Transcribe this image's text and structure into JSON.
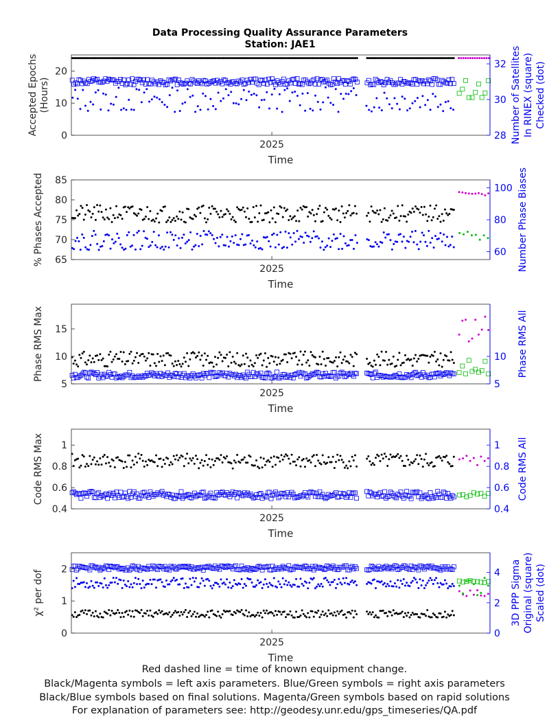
{
  "title": "Data Processing Quality Assurance Parameters",
  "subtitle": "Station: JAE1",
  "footer": [
    "Red dashed line = time of known equipment change.",
    "Black/Magenta symbols = left axis parameters. Blue/Green symbols = right axis parameters",
    "Black/Blue symbols based on final solutions.  Magenta/Green symbols based on rapid solutions",
    "For explanation of parameters see: http://geodesy.unr.edu/gps_timeseries/QA.pdf"
  ],
  "colors": {
    "left_final": "#000000",
    "left_rapid": "#cc00cc",
    "right_final": "#0000ee",
    "right_rapid": "#00bb00"
  },
  "chart_data": [
    {
      "type": "scatter",
      "xlabel": "Time",
      "xtick_labels": [
        "2025"
      ],
      "xlim": [
        2024.66,
        2025.37
      ],
      "xticks": [
        2025.0
      ],
      "ylabel_left": [
        "Accepted Epochs",
        "(Hours)"
      ],
      "ylim_left": [
        0,
        25
      ],
      "yticks_left": [
        0,
        10,
        20
      ],
      "ylabel_right": [
        "Number of Satellites",
        "In RINEX (square)",
        "Checked (dot)"
      ],
      "ylim_right": [
        28,
        32.5
      ],
      "yticks_right": [
        28,
        30,
        32
      ],
      "series": [
        {
          "axis": "left",
          "marker": "dot",
          "source": "final",
          "level": 24,
          "jitter": 0,
          "x_start": 2024.66,
          "x_end": 2025.31,
          "n": 230,
          "seed": 11
        },
        {
          "axis": "right",
          "marker": "square",
          "source": "final",
          "level": 31.0,
          "jitter": 0.18,
          "x_start": 2024.66,
          "x_end": 2025.31,
          "n": 230,
          "seed": 12
        },
        {
          "axis": "right",
          "marker": "dot",
          "source": "final",
          "level": 30.0,
          "jitter": 0.7,
          "x_start": 2024.66,
          "x_end": 2025.31,
          "n": 150,
          "seed": 13
        },
        {
          "axis": "left",
          "marker": "dot",
          "source": "rapid",
          "level": 24,
          "jitter": 0,
          "x_start": 2025.315,
          "x_end": 2025.37,
          "n": 14,
          "seed": 14
        },
        {
          "axis": "right",
          "marker": "square",
          "source": "rapid",
          "level": 30.6,
          "jitter": 0.5,
          "x_start": 2025.315,
          "x_end": 2025.37,
          "n": 10,
          "seed": 15
        }
      ]
    },
    {
      "type": "scatter",
      "xlabel": "Time",
      "xtick_labels": [
        "2025"
      ],
      "xlim": [
        2024.66,
        2025.37
      ],
      "xticks": [
        2025.0
      ],
      "ylabel_left": [
        "% Phases Accepted"
      ],
      "ylim_left": [
        65,
        85
      ],
      "yticks_left": [
        65,
        70,
        75,
        80,
        85
      ],
      "ylabel_right": [
        "Number Phase Biases"
      ],
      "ylim_right": [
        55,
        105
      ],
      "yticks_right": [
        60,
        80,
        100
      ],
      "series": [
        {
          "axis": "left",
          "marker": "dot",
          "source": "final",
          "level": 76.5,
          "jitter": 2.2,
          "x_start": 2024.66,
          "x_end": 2025.31,
          "n": 260,
          "seed": 21
        },
        {
          "axis": "right",
          "marker": "dot",
          "source": "final",
          "level": 67,
          "jitter": 6,
          "x_start": 2024.66,
          "x_end": 2025.31,
          "n": 230,
          "seed": 22
        },
        {
          "axis": "left",
          "marker": "dot",
          "source": "rapid",
          "level": 81.5,
          "jitter": 0.5,
          "x_start": 2025.315,
          "x_end": 2025.37,
          "n": 10,
          "seed": 23
        },
        {
          "axis": "right",
          "marker": "dot",
          "source": "rapid",
          "level": 70,
          "jitter": 3,
          "x_start": 2025.315,
          "x_end": 2025.37,
          "n": 8,
          "seed": 24
        }
      ]
    },
    {
      "type": "scatter",
      "xlabel": "Time",
      "xtick_labels": [
        "2025"
      ],
      "xlim": [
        2024.66,
        2025.37
      ],
      "xticks": [
        2025.0
      ],
      "ylabel_left": [
        "Phase RMS Max"
      ],
      "ylim_left": [
        5,
        19.5
      ],
      "yticks_left": [
        5,
        10,
        15
      ],
      "ylabel_right": [
        "Phase RMS All"
      ],
      "ylim_right": [
        5,
        19.5
      ],
      "yticks_right": [
        5,
        10
      ],
      "series": [
        {
          "axis": "left",
          "marker": "dot",
          "source": "final",
          "level": 9.5,
          "jitter": 1.4,
          "x_start": 2024.66,
          "x_end": 2025.31,
          "n": 260,
          "seed": 31
        },
        {
          "axis": "right",
          "marker": "square",
          "source": "final",
          "level": 6.6,
          "jitter": 0.55,
          "x_start": 2024.66,
          "x_end": 2025.31,
          "n": 260,
          "seed": 32
        },
        {
          "axis": "left",
          "marker": "dot",
          "source": "rapid",
          "level": 15,
          "jitter": 2.5,
          "x_start": 2025.315,
          "x_end": 2025.37,
          "n": 10,
          "seed": 33
        },
        {
          "axis": "right",
          "marker": "square",
          "source": "rapid",
          "level": 8,
          "jitter": 1.3,
          "x_start": 2025.315,
          "x_end": 2025.37,
          "n": 10,
          "seed": 34
        }
      ]
    },
    {
      "type": "scatter",
      "xlabel": "Time",
      "xtick_labels": [
        "2025"
      ],
      "xlim": [
        2024.66,
        2025.37
      ],
      "xticks": [
        2025.0
      ],
      "ylabel_left": [
        "Code RMS Max"
      ],
      "ylim_left": [
        0.4,
        1.15
      ],
      "yticks_left": [
        0.4,
        0.6,
        0.8,
        1
      ],
      "ylabel_right": [
        "Code RMS All"
      ],
      "ylim_right": [
        0.4,
        1.15
      ],
      "yticks_right": [
        0.4,
        0.6,
        0.8,
        1
      ],
      "series": [
        {
          "axis": "left",
          "marker": "dot",
          "source": "final",
          "level": 0.85,
          "jitter": 0.07,
          "x_start": 2024.66,
          "x_end": 2025.31,
          "n": 260,
          "seed": 41
        },
        {
          "axis": "right",
          "marker": "square",
          "source": "final",
          "level": 0.53,
          "jitter": 0.035,
          "x_start": 2024.66,
          "x_end": 2025.31,
          "n": 260,
          "seed": 42
        },
        {
          "axis": "left",
          "marker": "dot",
          "source": "rapid",
          "level": 0.85,
          "jitter": 0.05,
          "x_start": 2025.315,
          "x_end": 2025.37,
          "n": 9,
          "seed": 43
        },
        {
          "axis": "right",
          "marker": "square",
          "source": "rapid",
          "level": 0.53,
          "jitter": 0.03,
          "x_start": 2025.315,
          "x_end": 2025.37,
          "n": 9,
          "seed": 44
        }
      ]
    },
    {
      "type": "scatter",
      "xlabel": "Time",
      "xtick_labels": [
        "2025"
      ],
      "xlim": [
        2024.66,
        2025.37
      ],
      "xticks": [
        2025.0
      ],
      "ylabel_left": [
        "χ² per dof"
      ],
      "ylim_left": [
        0,
        2.5
      ],
      "yticks_left": [
        0,
        1,
        2
      ],
      "ylabel_right": [
        "3D PPP Sigma",
        "Original (square)",
        "Scaled (dot)"
      ],
      "ylim_right": [
        0,
        5.3
      ],
      "yticks_right": [
        0,
        2,
        4
      ],
      "series": [
        {
          "axis": "left",
          "marker": "dot",
          "source": "final",
          "level": 0.6,
          "jitter": 0.12,
          "x_start": 2024.66,
          "x_end": 2025.31,
          "n": 260,
          "seed": 51
        },
        {
          "axis": "right",
          "marker": "square",
          "source": "final",
          "level": 4.3,
          "jitter": 0.15,
          "x_start": 2024.66,
          "x_end": 2025.31,
          "n": 260,
          "seed": 52
        },
        {
          "axis": "right",
          "marker": "dot",
          "source": "final",
          "level": 3.3,
          "jitter": 0.35,
          "x_start": 2024.66,
          "x_end": 2025.31,
          "n": 260,
          "seed": 53
        },
        {
          "axis": "left",
          "marker": "dot",
          "source": "rapid",
          "level": 1.2,
          "jitter": 0.15,
          "x_start": 2025.315,
          "x_end": 2025.37,
          "n": 9,
          "seed": 54
        },
        {
          "axis": "right",
          "marker": "square",
          "source": "rapid",
          "level": 3.4,
          "jitter": 0.1,
          "x_start": 2025.315,
          "x_end": 2025.37,
          "n": 9,
          "seed": 55
        },
        {
          "axis": "right",
          "marker": "dot",
          "source": "rapid",
          "level": 3.1,
          "jitter": 0.6,
          "x_start": 2025.315,
          "x_end": 2025.37,
          "n": 9,
          "seed": 56
        }
      ]
    }
  ]
}
